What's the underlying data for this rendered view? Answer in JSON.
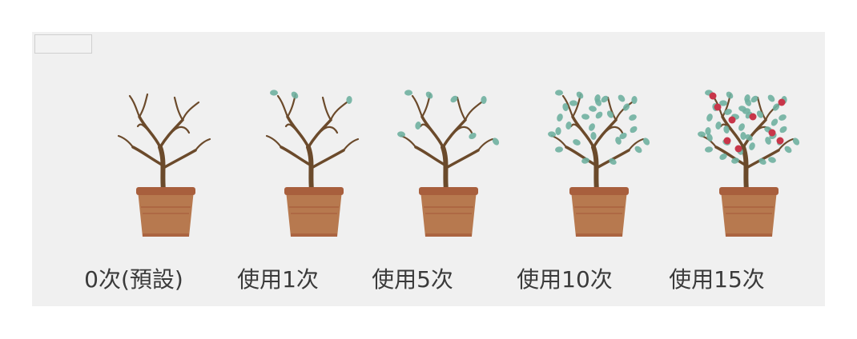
{
  "colors": {
    "panel": "#f0f0f0",
    "pot": "#b7794f",
    "pot_rim": "#a85f3d",
    "branch": "#6b4a2b",
    "leaf": "#6fb0a0",
    "flower": "#c8364a"
  },
  "stages": [
    {
      "label": "0次(預設)",
      "leaves": 0,
      "flowers": 0
    },
    {
      "label": "使用1次",
      "leaves": 3,
      "flowers": 0
    },
    {
      "label": "使用5次",
      "leaves": 8,
      "flowers": 0
    },
    {
      "label": "使用10次",
      "leaves": 30,
      "flowers": 0
    },
    {
      "label": "使用15次",
      "leaves": 42,
      "flowers": 9
    }
  ]
}
